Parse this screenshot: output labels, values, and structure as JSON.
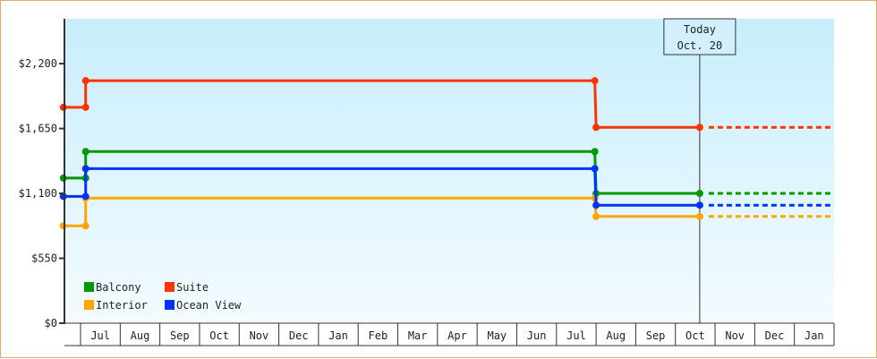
{
  "chart_data": {
    "type": "line",
    "step": true,
    "ylim": [
      0,
      2580
    ],
    "y_ticks": [
      {
        "value": 0,
        "label": "$0"
      },
      {
        "value": 550,
        "label": "$550"
      },
      {
        "value": 1100,
        "label": "$1,100"
      },
      {
        "value": 1650,
        "label": "$1,650"
      },
      {
        "value": 2200,
        "label": "$2,200"
      }
    ],
    "x_ticks": [
      "Jul",
      "Aug",
      "Sep",
      "Oct",
      "Nov",
      "Dec",
      "Jan",
      "Feb",
      "Mar",
      "Apr",
      "May",
      "Jun",
      "Jul",
      "Aug",
      "Sep",
      "Oct",
      "Nov",
      "Dec",
      "Jan"
    ],
    "x_range": [
      "Jun 18",
      "Jan 31 (following year)"
    ],
    "today": {
      "line1": "Today",
      "line2": "Oct. 20",
      "date": "Oct 20 (second year)"
    },
    "legend_placement": "bottom-left",
    "projection_style": "dashed after today",
    "background_gradient": [
      "#c8eefc",
      "#f4fbff"
    ],
    "series": [
      {
        "name": "Balcony",
        "color": "#009900",
        "points": [
          [
            "Jun 18",
            1230
          ],
          [
            "Jul 5",
            1230
          ],
          [
            "Jul 5",
            1455
          ],
          [
            "Jul 31 (second year)",
            1455
          ],
          [
            "Aug 1 (second year)",
            1100
          ],
          [
            "Oct 20 (second year)",
            1100
          ]
        ]
      },
      {
        "name": "Suite",
        "color": "#ff3300",
        "points": [
          [
            "Jun 18",
            1830
          ],
          [
            "Jul 5",
            1830
          ],
          [
            "Jul 5",
            2055
          ],
          [
            "Jul 31 (second year)",
            2055
          ],
          [
            "Aug 1 (second year)",
            1660
          ],
          [
            "Oct 20 (second year)",
            1660
          ]
        ]
      },
      {
        "name": "Interior",
        "color": "#ffa500",
        "points": [
          [
            "Jun 18",
            825
          ],
          [
            "Jul 5",
            825
          ],
          [
            "Jul 5",
            1060
          ],
          [
            "Jul 31 (second year)",
            1060
          ],
          [
            "Aug 1 (second year)",
            905
          ],
          [
            "Oct 20 (second year)",
            905
          ]
        ]
      },
      {
        "name": "Ocean View",
        "color": "#0033ff",
        "points": [
          [
            "Jun 18",
            1075
          ],
          [
            "Jul 5",
            1075
          ],
          [
            "Jul 5",
            1310
          ],
          [
            "Jul 31 (second year)",
            1310
          ],
          [
            "Aug 1 (second year)",
            1000
          ],
          [
            "Oct 20 (second year)",
            1000
          ]
        ]
      }
    ]
  }
}
